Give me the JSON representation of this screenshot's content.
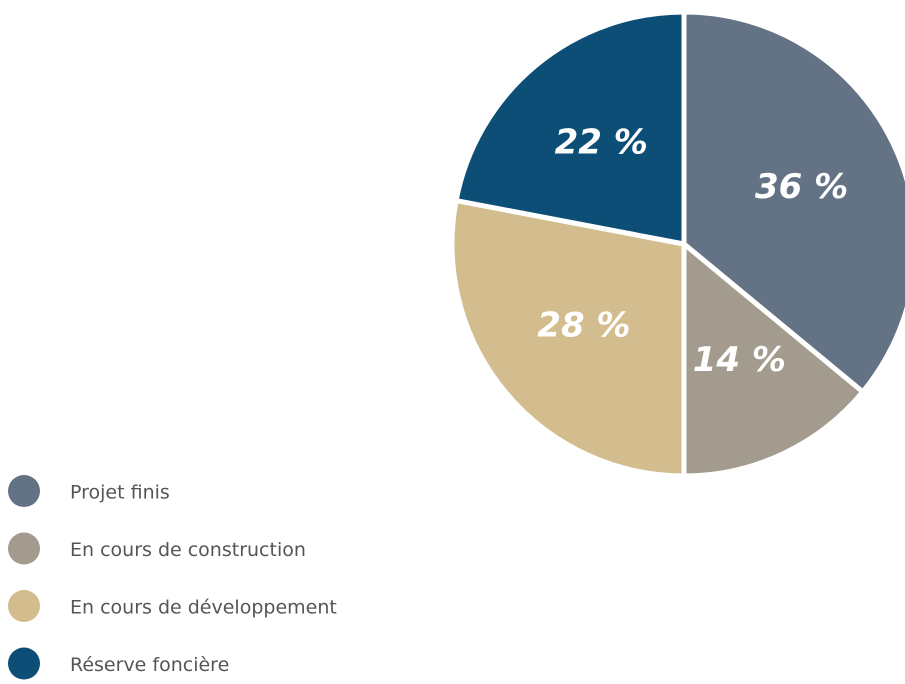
{
  "chart_data": {
    "type": "pie",
    "categories": [
      "Projet finis",
      "En cours de construction",
      "En cours de développement",
      "Réserve foncière"
    ],
    "values": [
      36,
      14,
      28,
      22
    ],
    "value_labels": [
      "36 %",
      "14 %",
      "28 %",
      "22 %"
    ],
    "colors": [
      "#647285",
      "#a39b8d",
      "#d3bc8d",
      "#0d4e77"
    ],
    "legend": "bottom-left"
  }
}
